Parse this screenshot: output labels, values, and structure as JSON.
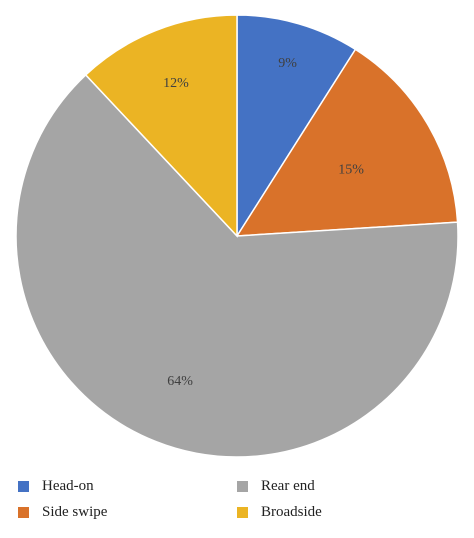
{
  "colors": {
    "head_on": "#4472C4",
    "side_swipe": "#D9722A",
    "rear_end": "#A5A5A5",
    "broadside": "#EBB424"
  },
  "chart_data": {
    "type": "pie",
    "title": "",
    "slices": [
      {
        "label": "Head-on",
        "value": 9,
        "display": "9%",
        "color": "#4472C4"
      },
      {
        "label": "Side swipe",
        "value": 15,
        "display": "15%",
        "color": "#D9722A"
      },
      {
        "label": "Rear end",
        "value": 64,
        "display": "64%",
        "color": "#A5A5A5"
      },
      {
        "label": "Broadside",
        "value": 12,
        "display": "12%",
        "color": "#EBB424"
      }
    ],
    "legend_placement": "bottom",
    "start_angle": "12 o'clock",
    "direction": "clockwise"
  },
  "legend": {
    "items": [
      {
        "label": "Head-on",
        "color": "#4472C4"
      },
      {
        "label": "Side swipe",
        "color": "#D9722A"
      },
      {
        "label": "Rear end",
        "color": "#A5A5A5"
      },
      {
        "label": "Broadside",
        "color": "#EBB424"
      }
    ]
  }
}
